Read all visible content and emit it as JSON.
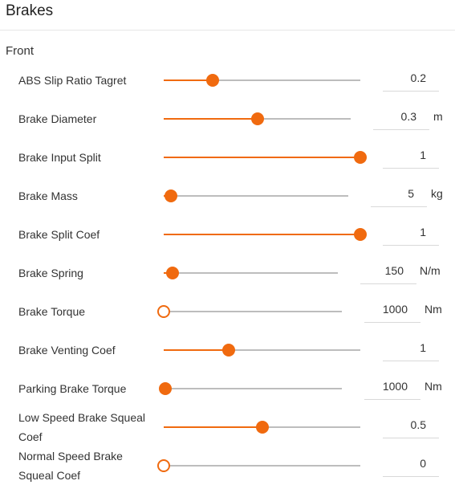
{
  "title": "Brakes",
  "section": "Front",
  "accent_color": "#f06a0f",
  "rows": [
    {
      "label": "ABS Slip Ratio Tagret",
      "value": "0.2",
      "unit": "",
      "slider_fraction": 0.25
    },
    {
      "label": "Brake Diameter",
      "value": "0.3",
      "unit": "m",
      "slider_fraction": 0.5
    },
    {
      "label": "Brake Input Split",
      "value": "1",
      "unit": "",
      "slider_fraction": 1.0
    },
    {
      "label": "Brake Mass",
      "value": "5",
      "unit": "kg",
      "slider_fraction": 0.04
    },
    {
      "label": "Brake Split Coef",
      "value": "1",
      "unit": "",
      "slider_fraction": 1.0
    },
    {
      "label": "Brake Spring",
      "value": "150",
      "unit": "N/m",
      "slider_fraction": 0.05
    },
    {
      "label": "Brake Torque",
      "value": "1000",
      "unit": "Nm",
      "slider_fraction": 0.0
    },
    {
      "label": "Brake Venting Coef",
      "value": "1",
      "unit": "",
      "slider_fraction": 0.33
    },
    {
      "label": "Parking Brake Torque",
      "value": "1000",
      "unit": "Nm",
      "slider_fraction": 0.01
    },
    {
      "label": "Low Speed Brake Squeal Coef",
      "value": "0.5",
      "unit": "",
      "slider_fraction": 0.5
    },
    {
      "label": "Normal Speed Brake Squeal Coef",
      "value": "0",
      "unit": "",
      "slider_fraction": 0.0
    }
  ]
}
